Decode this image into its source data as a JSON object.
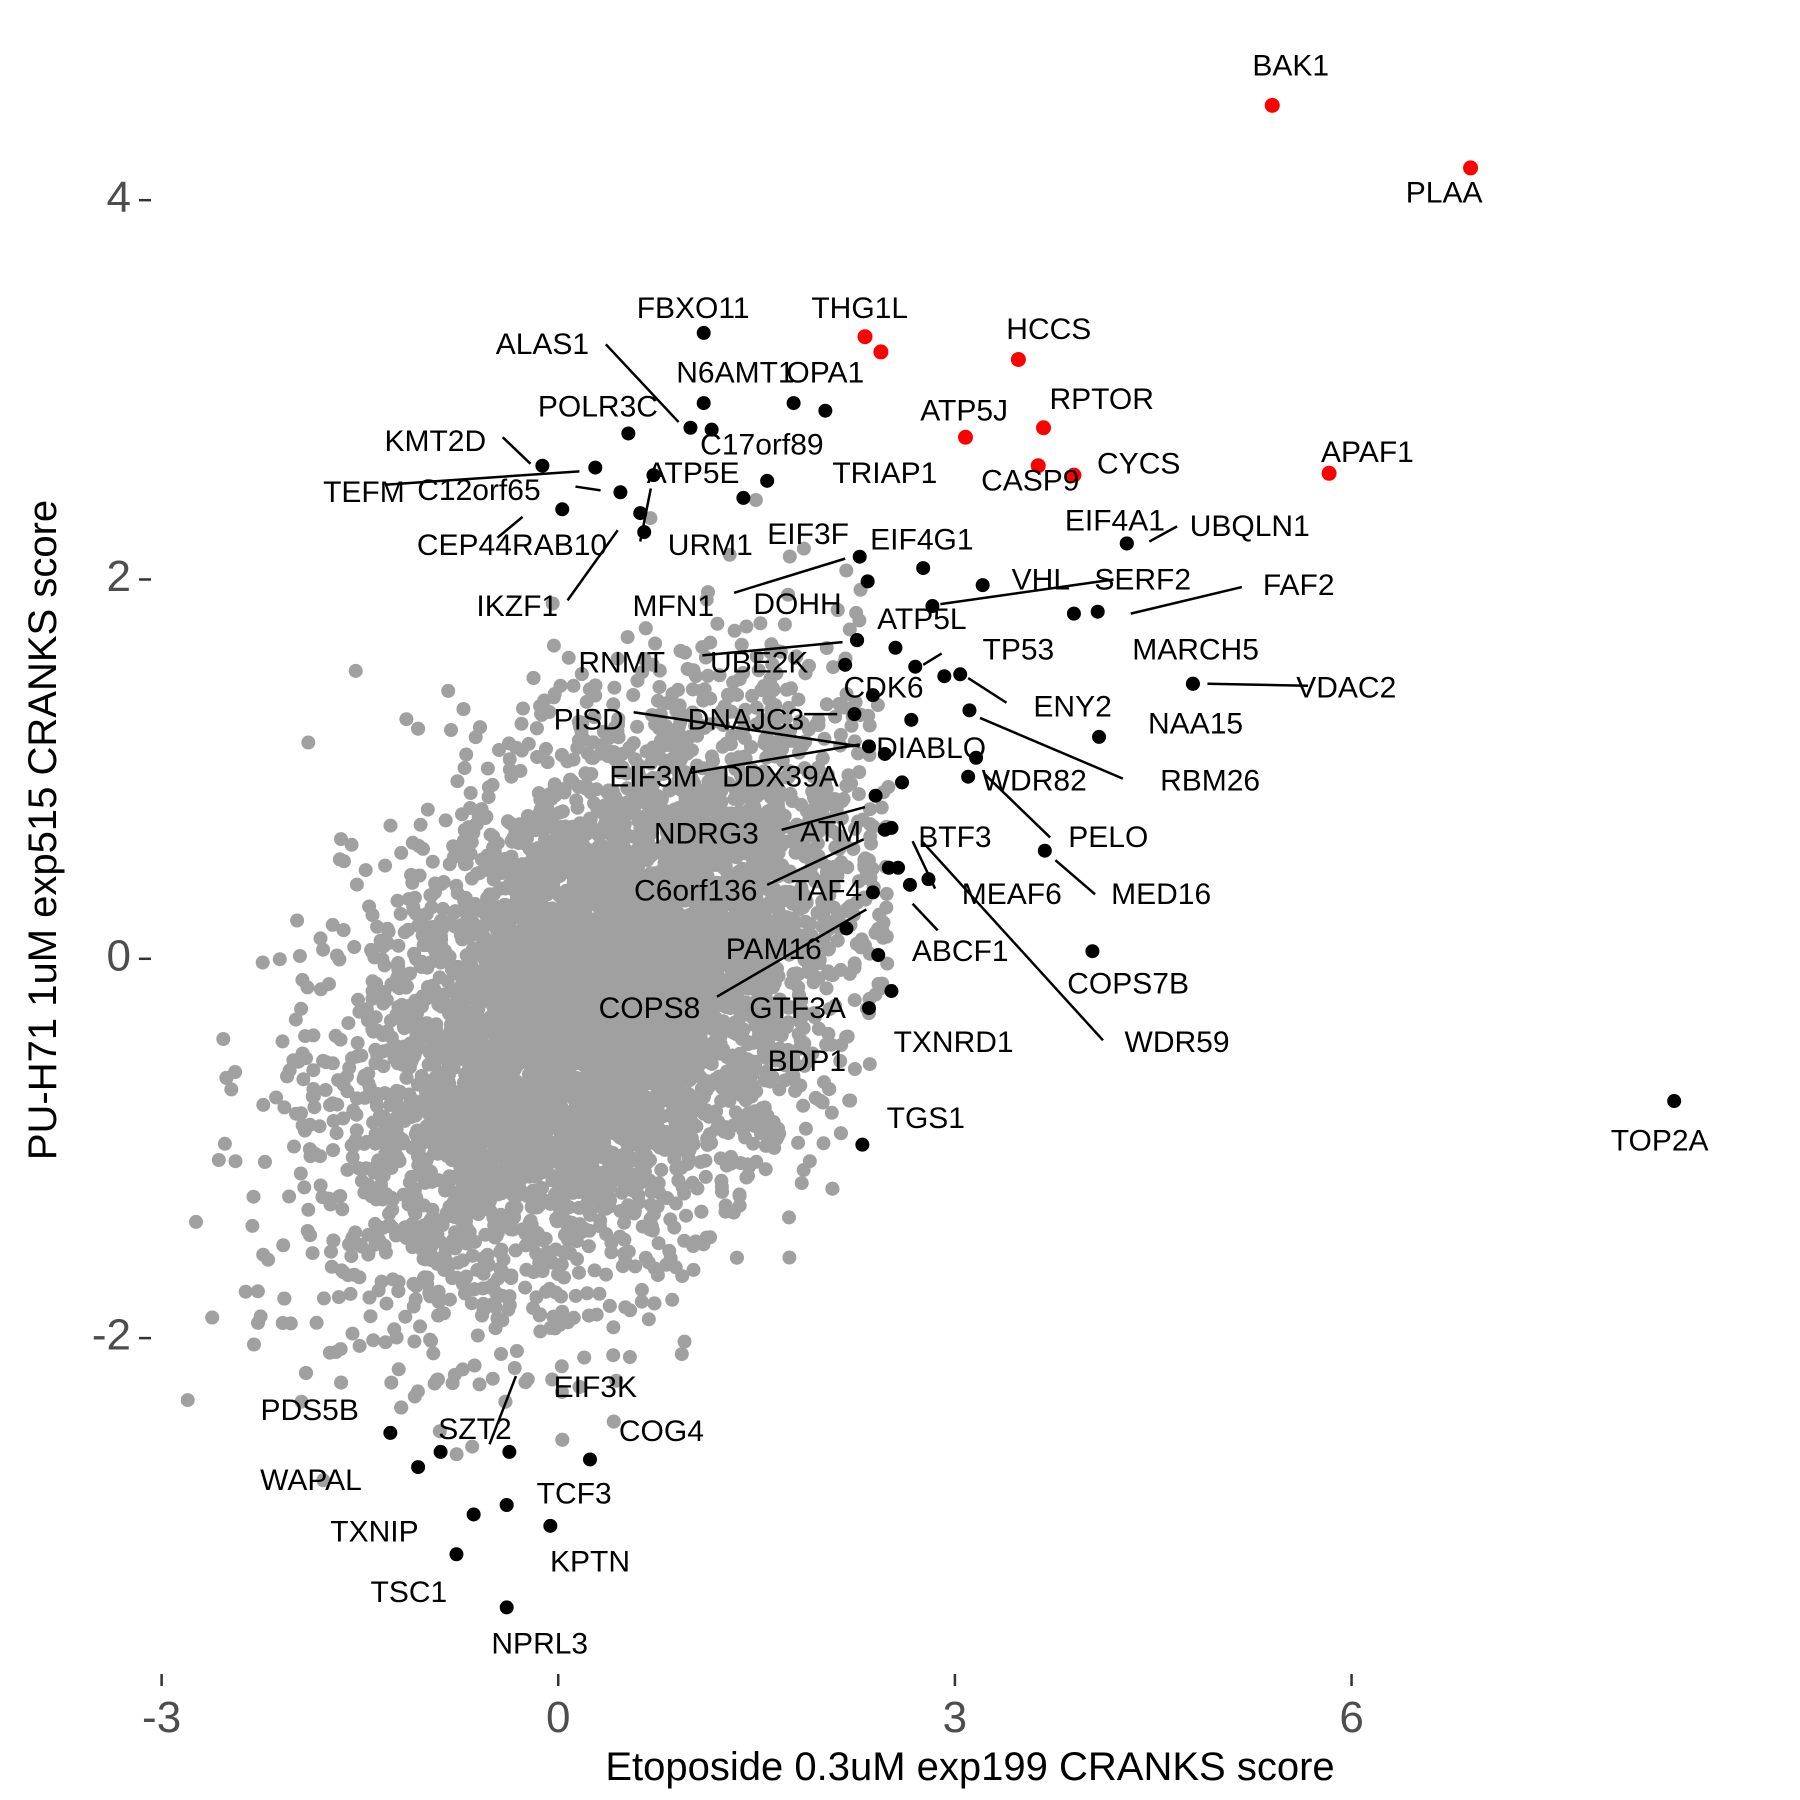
{
  "chart_data": {
    "type": "scatter",
    "title": "",
    "xlabel": "Etoposide 0.3uM exp199 CRANKS score",
    "ylabel": "PU-H71 1uM exp515 CRANKS score",
    "xlim": [
      -3.05,
      8.9
    ],
    "ylim": [
      -3.75,
      4.95
    ],
    "x_ticks": [
      -3,
      0,
      3,
      6
    ],
    "x_tick_labels": [
      "-3",
      "0",
      "3",
      "6"
    ],
    "y_ticks": [
      -2,
      0,
      2,
      4
    ],
    "y_tick_labels": [
      "-2",
      "0",
      "2",
      "4"
    ],
    "grid": false,
    "legend": "none",
    "colors": {
      "background_genes": "#a0a0a0",
      "labeled_genes": "#000000",
      "highlighted_genes": "#ff0000"
    },
    "background_cloud": {
      "description": "thousands of unlabeled gray gene points, roughly elliptical cloud",
      "center": [
        0.35,
        -0.2
      ],
      "spread_x": 0.95,
      "spread_y": 0.75,
      "correlation": 0.45,
      "count": 6500
    },
    "highlighted_genes": [
      {
        "gene": "BAK1",
        "x": 5.4,
        "y": 4.5
      },
      {
        "gene": "PLAA",
        "x": 6.9,
        "y": 4.17
      },
      {
        "gene": "THG1L",
        "x": 2.32,
        "y": 3.28
      },
      {
        "gene": "OPA1",
        "x": 2.44,
        "y": 3.2
      },
      {
        "gene": "HCCS",
        "x": 3.48,
        "y": 3.16
      },
      {
        "gene": "RPTOR",
        "x": 3.67,
        "y": 2.8
      },
      {
        "gene": "ATP5J",
        "x": 3.08,
        "y": 2.75
      },
      {
        "gene": "CASP9",
        "x": 3.63,
        "y": 2.6
      },
      {
        "gene": "CYCS",
        "x": 3.9,
        "y": 2.55
      },
      {
        "gene": "APAF1",
        "x": 5.83,
        "y": 2.56
      }
    ],
    "labeled_genes": [
      {
        "gene": "FBXO11",
        "x": 1.1,
        "y": 3.3
      },
      {
        "gene": "ALAS1",
        "x": 1.0,
        "y": 2.8
      },
      {
        "gene": "N6AMT1",
        "x": 1.1,
        "y": 2.93
      },
      {
        "gene": "C17orf89",
        "x": 1.16,
        "y": 2.79
      },
      {
        "gene": "POLR3C",
        "x": 0.53,
        "y": 2.77
      },
      {
        "gene": "KMT2D",
        "x": -0.12,
        "y": 2.6
      },
      {
        "gene": "TEFM",
        "x": 0.28,
        "y": 2.59
      },
      {
        "gene": "C12orf65",
        "x": 0.47,
        "y": 2.46
      },
      {
        "gene": "ATP5E",
        "x": 0.72,
        "y": 2.55
      },
      {
        "gene": "CEP44",
        "x": 0.03,
        "y": 2.37
      },
      {
        "gene": "RAB10",
        "x": 0.62,
        "y": 2.35
      },
      {
        "gene": "URM1",
        "x": 1.4,
        "y": 2.43
      },
      {
        "gene": "IKZF1",
        "x": 0.65,
        "y": 2.25
      },
      {
        "gene": "TRIAP1",
        "x": 1.58,
        "y": 2.52
      },
      {
        "gene": "C17orf89_b",
        "x": 1.78,
        "y": 2.93
      },
      {
        "gene": "OPA1_b",
        "x": 2.02,
        "y": 2.89
      },
      {
        "gene": "EIF3F",
        "x": 2.28,
        "y": 2.12
      },
      {
        "gene": "EIF4G1",
        "x": 2.76,
        "y": 2.06
      },
      {
        "gene": "MFN1",
        "x": 2.34,
        "y": 1.99
      },
      {
        "gene": "DOHH",
        "x": 3.21,
        "y": 1.97
      },
      {
        "gene": "EIF4A1",
        "x": 4.3,
        "y": 2.19
      },
      {
        "gene": "UBQLN1",
        "x": 4.3,
        "y": 2.19
      },
      {
        "gene": "VHL",
        "x": 2.83,
        "y": 1.86
      },
      {
        "gene": "SERF2",
        "x": 3.9,
        "y": 1.82
      },
      {
        "gene": "FAF2",
        "x": 4.08,
        "y": 1.83
      },
      {
        "gene": "ATP5L",
        "x": 2.26,
        "y": 1.68
      },
      {
        "gene": "RNMT",
        "x": 2.26,
        "y": 1.68
      },
      {
        "gene": "UBE2K",
        "x": 2.55,
        "y": 1.64
      },
      {
        "gene": "TP53",
        "x": 2.7,
        "y": 1.54
      },
      {
        "gene": "CDK6",
        "x": 2.17,
        "y": 1.55
      },
      {
        "gene": "MARCH5",
        "x": 2.92,
        "y": 1.49
      },
      {
        "gene": "ENY2",
        "x": 3.04,
        "y": 1.5
      },
      {
        "gene": "NAA15",
        "x": 4.8,
        "y": 1.45
      },
      {
        "gene": "VDAC2",
        "x": 4.8,
        "y": 1.45
      },
      {
        "gene": "PISD",
        "x": 2.38,
        "y": 1.39
      },
      {
        "gene": "DNAJC3",
        "x": 2.24,
        "y": 1.29
      },
      {
        "gene": "DIABLO",
        "x": 2.67,
        "y": 1.26
      },
      {
        "gene": "RBM26",
        "x": 3.11,
        "y": 1.31
      },
      {
        "gene": "EIF3M",
        "x": 2.35,
        "y": 1.12
      },
      {
        "gene": "DDX39A",
        "x": 2.47,
        "y": 1.08
      },
      {
        "gene": "WDR82",
        "x": 3.16,
        "y": 1.06
      },
      {
        "gene": "PELO",
        "x": 3.1,
        "y": 0.96
      },
      {
        "gene": "NAA15_b",
        "x": 4.09,
        "y": 1.17
      },
      {
        "gene": "NDRG3",
        "x": 2.4,
        "y": 0.86
      },
      {
        "gene": "ATM",
        "x": 2.6,
        "y": 0.93
      },
      {
        "gene": "BTF3",
        "x": 2.52,
        "y": 0.69
      },
      {
        "gene": "C6orf136",
        "x": 2.47,
        "y": 0.68
      },
      {
        "gene": "MED16",
        "x": 3.68,
        "y": 0.57
      },
      {
        "gene": "TAF4",
        "x": 2.5,
        "y": 0.48
      },
      {
        "gene": "MEAF6",
        "x": 2.66,
        "y": 0.39
      },
      {
        "gene": "PAM16",
        "x": 2.38,
        "y": 0.35
      },
      {
        "gene": "ABCF1",
        "x": 2.8,
        "y": 0.42
      },
      {
        "gene": "COPS8",
        "x": 2.18,
        "y": 0.16
      },
      {
        "gene": "COPS7B",
        "x": 4.04,
        "y": 0.04
      },
      {
        "gene": "GTF3A",
        "x": 2.42,
        "y": 0.02
      },
      {
        "gene": "WDR59",
        "x": 2.57,
        "y": 0.48
      },
      {
        "gene": "TXNRD1",
        "x": 2.52,
        "y": -0.17
      },
      {
        "gene": "BDP1",
        "x": 2.35,
        "y": -0.26
      },
      {
        "gene": "TGS1",
        "x": 2.3,
        "y": -0.98
      },
      {
        "gene": "TOP2A",
        "x": 8.44,
        "y": -0.75
      },
      {
        "gene": "EIF3K",
        "x": -0.37,
        "y": -2.6
      },
      {
        "gene": "PDS5B",
        "x": -1.27,
        "y": -2.5
      },
      {
        "gene": "SZT2",
        "x": -0.89,
        "y": -2.6
      },
      {
        "gene": "WAPAL",
        "x": -1.06,
        "y": -2.68
      },
      {
        "gene": "COG4",
        "x": 0.24,
        "y": -2.64
      },
      {
        "gene": "TCF3",
        "x": -0.39,
        "y": -2.88
      },
      {
        "gene": "TXNIP",
        "x": -0.64,
        "y": -2.93
      },
      {
        "gene": "KPTN",
        "x": -0.06,
        "y": -2.99
      },
      {
        "gene": "TSC1",
        "x": -0.77,
        "y": -3.14
      },
      {
        "gene": "NPRL3",
        "x": -0.39,
        "y": -3.42
      }
    ],
    "labels": [
      {
        "text": "BAK1",
        "x": 5.54,
        "y": 4.7,
        "color": "#000000"
      },
      {
        "text": "PLAA",
        "x": 6.7,
        "y": 4.03,
        "color": "#000000"
      },
      {
        "text": "THG1L",
        "x": 2.28,
        "y": 3.42,
        "color": "#000000"
      },
      {
        "text": "HCCS",
        "x": 3.71,
        "y": 3.31,
        "color": "#000000"
      },
      {
        "text": "RPTOR",
        "x": 4.11,
        "y": 2.94,
        "color": "#000000"
      },
      {
        "text": "ATP5J",
        "x": 3.07,
        "y": 2.88,
        "color": "#000000"
      },
      {
        "text": "CYCS",
        "x": 4.39,
        "y": 2.6,
        "color": "#000000"
      },
      {
        "text": "CASP9",
        "x": 3.57,
        "y": 2.51,
        "color": "#000000"
      },
      {
        "text": "APAF1",
        "x": 6.12,
        "y": 2.66,
        "color": "#000000"
      },
      {
        "text": "FBXO11",
        "x": 1.02,
        "y": 3.42,
        "color": "#000000"
      },
      {
        "text": "ALAS1",
        "x": -0.12,
        "y": 3.23,
        "color": "#000000"
      },
      {
        "text": "N6AMT1",
        "x": 1.34,
        "y": 3.08,
        "color": "#000000"
      },
      {
        "text": "OPA1",
        "x": 2.02,
        "y": 3.08,
        "color": "#000000"
      },
      {
        "text": "POLR3C",
        "x": 0.3,
        "y": 2.9,
        "color": "#000000"
      },
      {
        "text": "C17orf89",
        "x": 1.54,
        "y": 2.7,
        "color": "#000000"
      },
      {
        "text": "KMT2D",
        "x": -0.93,
        "y": 2.72,
        "color": "#000000"
      },
      {
        "text": "TRIAP1",
        "x": 2.47,
        "y": 2.55,
        "color": "#000000"
      },
      {
        "text": "ATP5E",
        "x": 1.02,
        "y": 2.55,
        "color": "#000000"
      },
      {
        "text": "TEFM",
        "x": -1.47,
        "y": 2.45,
        "color": "#000000"
      },
      {
        "text": "C12orf65",
        "x": -0.6,
        "y": 2.46,
        "color": "#000000"
      },
      {
        "text": "EIF4A1",
        "x": 4.21,
        "y": 2.3,
        "color": "#000000"
      },
      {
        "text": "UBQLN1",
        "x": 5.23,
        "y": 2.27,
        "color": "#000000"
      },
      {
        "text": "CEP44",
        "x": -0.71,
        "y": 2.17,
        "color": "#000000"
      },
      {
        "text": "RAB10",
        "x": 0.01,
        "y": 2.17,
        "color": "#000000"
      },
      {
        "text": "URM1",
        "x": 1.15,
        "y": 2.17,
        "color": "#000000"
      },
      {
        "text": "EIF3F",
        "x": 1.89,
        "y": 2.23,
        "color": "#000000"
      },
      {
        "text": "EIF4G1",
        "x": 2.75,
        "y": 2.2,
        "color": "#000000"
      },
      {
        "text": "VHL",
        "x": 3.65,
        "y": 1.99,
        "color": "#000000"
      },
      {
        "text": "SERF2",
        "x": 4.42,
        "y": 1.99,
        "color": "#000000"
      },
      {
        "text": "FAF2",
        "x": 5.6,
        "y": 1.96,
        "color": "#000000"
      },
      {
        "text": "IKZF1",
        "x": -0.31,
        "y": 1.85,
        "color": "#000000"
      },
      {
        "text": "MFN1",
        "x": 0.87,
        "y": 1.85,
        "color": "#000000"
      },
      {
        "text": "DOHH",
        "x": 1.81,
        "y": 1.86,
        "color": "#000000"
      },
      {
        "text": "ATP5L",
        "x": 2.75,
        "y": 1.78,
        "color": "#000000"
      },
      {
        "text": "MARCH5",
        "x": 4.82,
        "y": 1.62,
        "color": "#000000"
      },
      {
        "text": "TP53",
        "x": 3.48,
        "y": 1.62,
        "color": "#000000"
      },
      {
        "text": "RNMT",
        "x": 0.48,
        "y": 1.55,
        "color": "#000000"
      },
      {
        "text": "UBE2K",
        "x": 1.52,
        "y": 1.55,
        "color": "#000000"
      },
      {
        "text": "CDK6",
        "x": 2.46,
        "y": 1.42,
        "color": "#000000"
      },
      {
        "text": "VDAC2",
        "x": 5.96,
        "y": 1.42,
        "color": "#000000"
      },
      {
        "text": "ENY2",
        "x": 3.89,
        "y": 1.32,
        "color": "#000000"
      },
      {
        "text": "NAA15",
        "x": 4.82,
        "y": 1.23,
        "color": "#000000"
      },
      {
        "text": "PISD",
        "x": 0.23,
        "y": 1.25,
        "color": "#000000"
      },
      {
        "text": "DNAJC3",
        "x": 1.42,
        "y": 1.25,
        "color": "#000000"
      },
      {
        "text": "DIABLO",
        "x": 2.82,
        "y": 1.1,
        "color": "#000000"
      },
      {
        "text": "EIF3M",
        "x": 0.72,
        "y": 0.95,
        "color": "#000000"
      },
      {
        "text": "DDX39A",
        "x": 1.68,
        "y": 0.95,
        "color": "#000000"
      },
      {
        "text": "WDR82",
        "x": 3.6,
        "y": 0.93,
        "color": "#000000"
      },
      {
        "text": "RBM26",
        "x": 4.93,
        "y": 0.93,
        "color": "#000000"
      },
      {
        "text": "NDRG3",
        "x": 1.12,
        "y": 0.65,
        "color": "#000000"
      },
      {
        "text": "ATM",
        "x": 2.06,
        "y": 0.66,
        "color": "#000000"
      },
      {
        "text": "BTF3",
        "x": 3.0,
        "y": 0.63,
        "color": "#000000"
      },
      {
        "text": "PELO",
        "x": 4.16,
        "y": 0.63,
        "color": "#000000"
      },
      {
        "text": "C6orf136",
        "x": 1.04,
        "y": 0.35,
        "color": "#000000"
      },
      {
        "text": "TAF4",
        "x": 2.03,
        "y": 0.35,
        "color": "#000000"
      },
      {
        "text": "MEAF6",
        "x": 3.43,
        "y": 0.33,
        "color": "#000000"
      },
      {
        "text": "MED16",
        "x": 4.56,
        "y": 0.33,
        "color": "#000000"
      },
      {
        "text": "PAM16",
        "x": 1.63,
        "y": 0.04,
        "color": "#000000"
      },
      {
        "text": "ABCF1",
        "x": 3.04,
        "y": 0.03,
        "color": "#000000"
      },
      {
        "text": "COPS7B",
        "x": 4.31,
        "y": -0.14,
        "color": "#000000"
      },
      {
        "text": "COPS8",
        "x": 0.69,
        "y": -0.27,
        "color": "#000000"
      },
      {
        "text": "GTF3A",
        "x": 1.81,
        "y": -0.27,
        "color": "#000000"
      },
      {
        "text": "WDR59",
        "x": 4.68,
        "y": -0.45,
        "color": "#000000"
      },
      {
        "text": "TXNRD1",
        "x": 2.99,
        "y": -0.45,
        "color": "#000000"
      },
      {
        "text": "BDP1",
        "x": 1.88,
        "y": -0.55,
        "color": "#000000"
      },
      {
        "text": "TGS1",
        "x": 2.78,
        "y": -0.85,
        "color": "#000000"
      },
      {
        "text": "TOP2A",
        "x": 8.33,
        "y": -0.97,
        "color": "#000000"
      },
      {
        "text": "EIF3K",
        "x": 0.28,
        "y": -2.27,
        "color": "#000000"
      },
      {
        "text": "PDS5B",
        "x": -1.88,
        "y": -2.39,
        "color": "#000000"
      },
      {
        "text": "SZT2",
        "x": -0.63,
        "y": -2.49,
        "color": "#000000"
      },
      {
        "text": "WAPAL",
        "x": -1.87,
        "y": -2.76,
        "color": "#000000"
      },
      {
        "text": "COG4",
        "x": 0.78,
        "y": -2.5,
        "color": "#000000"
      },
      {
        "text": "TCF3",
        "x": 0.12,
        "y": -2.83,
        "color": "#000000"
      },
      {
        "text": "TXNIP",
        "x": -1.39,
        "y": -3.03,
        "color": "#000000"
      },
      {
        "text": "KPTN",
        "x": 0.24,
        "y": -3.19,
        "color": "#000000"
      },
      {
        "text": "TSC1",
        "x": -1.13,
        "y": -3.35,
        "color": "#000000"
      },
      {
        "text": "NPRL3",
        "x": -0.14,
        "y": -3.62,
        "color": "#000000"
      }
    ],
    "leader_lines": [
      [
        0.36,
        3.24,
        0.91,
        2.83
      ],
      [
        -0.42,
        2.75,
        -0.21,
        2.61
      ],
      [
        -1.3,
        2.5,
        0.16,
        2.57
      ],
      [
        0.13,
        2.49,
        0.32,
        2.47
      ],
      [
        -0.46,
        2.22,
        -0.27,
        2.33
      ],
      [
        0.07,
        1.89,
        0.45,
        2.26
      ],
      [
        0.62,
        2.2,
        0.7,
        2.48
      ],
      [
        1.33,
        1.93,
        2.17,
        2.11
      ],
      [
        2.89,
        1.87,
        4.2,
        2.0
      ],
      [
        4.33,
        1.82,
        5.17,
        1.96
      ],
      [
        4.47,
        2.2,
        4.68,
        2.28
      ],
      [
        1.09,
        1.6,
        2.15,
        1.67
      ],
      [
        2.76,
        1.55,
        2.9,
        1.61
      ],
      [
        3.1,
        1.48,
        3.39,
        1.35
      ],
      [
        1.86,
        1.29,
        2.11,
        1.29
      ],
      [
        0.57,
        1.3,
        2.28,
        1.12
      ],
      [
        3.19,
        1.27,
        4.27,
        0.95
      ],
      [
        0.99,
        0.98,
        2.28,
        1.13
      ],
      [
        1.69,
        0.68,
        2.32,
        0.8
      ],
      [
        1.58,
        0.39,
        2.31,
        0.63
      ],
      [
        3.23,
        0.97,
        3.72,
        0.64
      ],
      [
        3.76,
        0.52,
        4.06,
        0.34
      ],
      [
        2.68,
        0.62,
        2.85,
        0.37
      ],
      [
        2.68,
        0.29,
        2.87,
        0.15
      ],
      [
        1.2,
        -0.2,
        2.33,
        0.26
      ],
      [
        2.75,
        0.62,
        4.12,
        -0.43
      ],
      [
        4.91,
        1.45,
        5.67,
        1.44
      ],
      [
        -0.32,
        -2.2,
        -0.52,
        -2.56
      ]
    ]
  }
}
